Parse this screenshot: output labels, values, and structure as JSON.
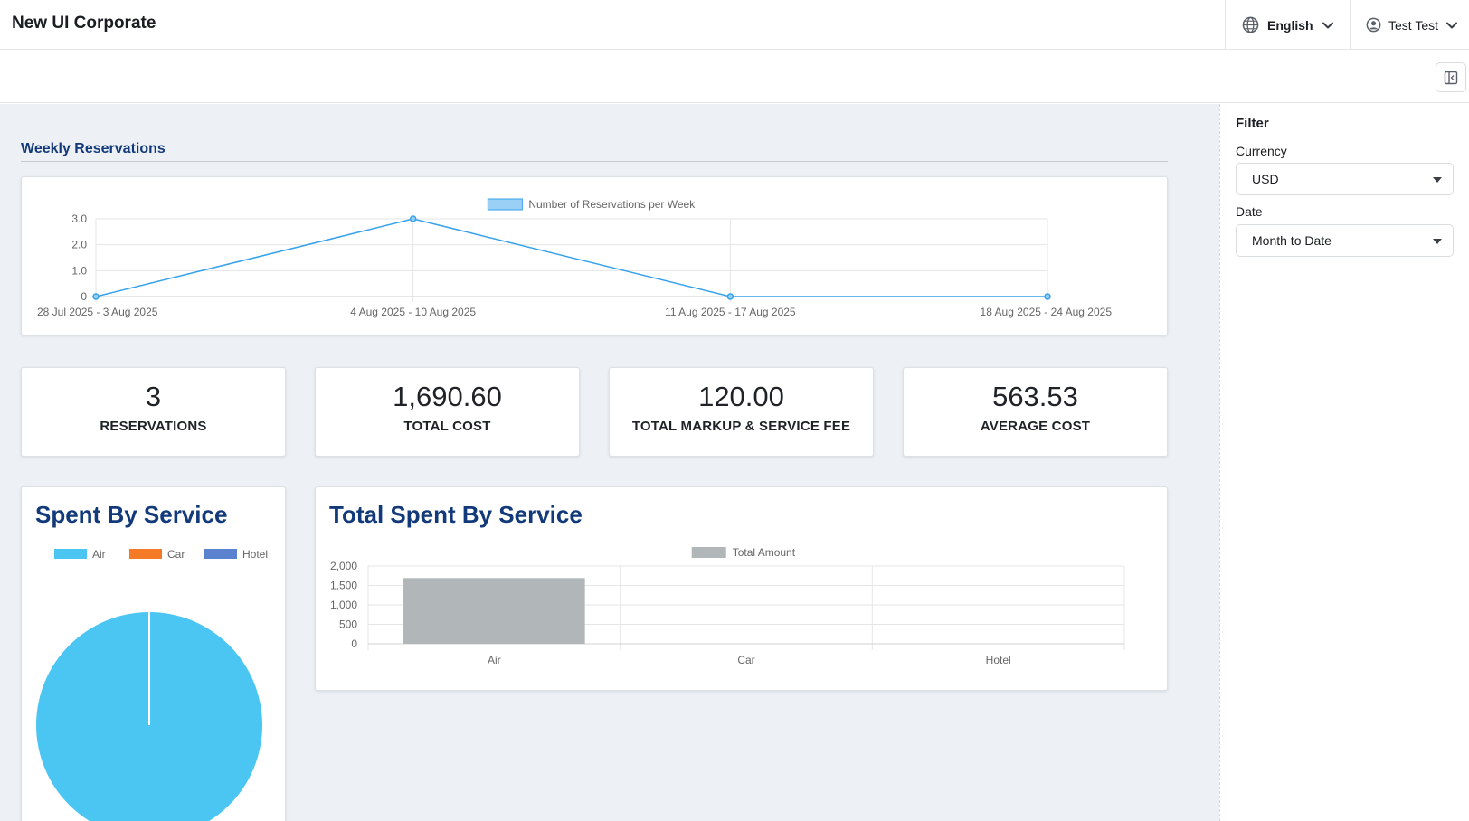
{
  "header": {
    "app_title": "New UI Corporate",
    "language": "English",
    "user_name": "Test Test"
  },
  "weekly": {
    "section_title": "Weekly Reservations"
  },
  "kpis": [
    {
      "value": "3",
      "label": "RESERVATIONS"
    },
    {
      "value": "1,690.60",
      "label": "TOTAL COST"
    },
    {
      "value": "120.00",
      "label": "TOTAL MARKUP & SERVICE FEE"
    },
    {
      "value": "563.53",
      "label": "AVERAGE COST"
    }
  ],
  "pie_card": {
    "title": "Spent By Service"
  },
  "bar_card": {
    "title": "Total Spent By Service"
  },
  "filter": {
    "title": "Filter",
    "currency_label": "Currency",
    "currency_value": "USD",
    "date_label": "Date",
    "date_value": "Month to Date"
  },
  "colors": {
    "line": "#36a2eb",
    "line_fill": "#9ad0f5",
    "air": "#4bc6f3",
    "car": "#f57a25",
    "hotel": "#5b82cf",
    "bar": "#b1b7b9",
    "heading": "#123a7a"
  },
  "chart_data": [
    {
      "type": "line",
      "title": "",
      "legend": [
        "Number of Reservations per Week"
      ],
      "categories": [
        "28 Jul 2025 - 3 Aug 2025",
        "4 Aug 2025 - 10 Aug 2025",
        "11 Aug 2025 - 17 Aug 2025",
        "18 Aug 2025 - 24 Aug 2025"
      ],
      "series": [
        {
          "name": "Number of Reservations per Week",
          "values": [
            0,
            3,
            0,
            0
          ]
        }
      ],
      "ylim": [
        0,
        3
      ],
      "yticks": [
        "0",
        "1.0",
        "2.0",
        "3.0"
      ],
      "yticks_values": [
        0,
        1,
        2,
        3
      ],
      "grid": true,
      "legend_position": "top"
    },
    {
      "type": "pie",
      "title": "Spent By Service",
      "categories": [
        "Air",
        "Car",
        "Hotel"
      ],
      "values": [
        1690.6,
        0,
        0
      ],
      "legend_position": "top"
    },
    {
      "type": "bar",
      "title": "Total Spent By Service",
      "legend": [
        "Total Amount"
      ],
      "categories": [
        "Air",
        "Car",
        "Hotel"
      ],
      "values": [
        1690.6,
        0,
        0
      ],
      "ylim": [
        0,
        2000
      ],
      "yticks": [
        "0",
        "500",
        "1,000",
        "1,500",
        "2,000"
      ],
      "yticks_values": [
        0,
        500,
        1000,
        1500,
        2000
      ],
      "grid": true,
      "legend_position": "top"
    }
  ]
}
